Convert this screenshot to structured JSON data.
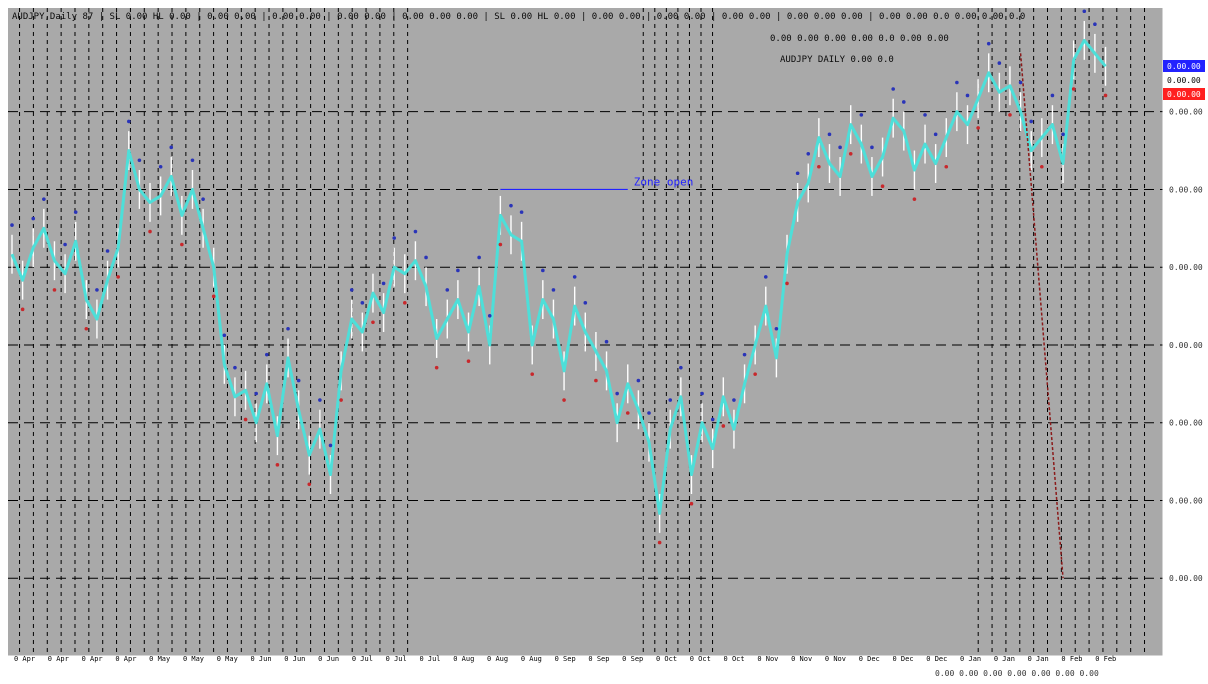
{
  "colors": {
    "background": "#a9a9a9",
    "frame": "#ffffff",
    "grid_dash": "#000000",
    "price_line": "#4ddfd9",
    "wick": "#ffffff",
    "red_marker": "#c8282c",
    "blue_marker": "#2a34b8",
    "trend_line": "#8b1a1a",
    "info_text": "#0a0a0a",
    "label_blue": "#2222ff",
    "label_white": "#ffffff",
    "label_red": "#ff2020"
  },
  "header": {
    "status_text": "AUDJPY,Daily 87 | SL 0.00 HL 0.00 | 0.00 0.00 | 0.00 0.00 | 0.00 0.00 | 0.00 0.00 0.00 | SL 0.00 HL 0.00 | 0.00 0.00 | 0.00 0.00 | 0.00 0.00 | 0.00 0.00 0.00 | 0.00 0.00 0.0 0.00 0.00 0.0"
  },
  "info_box": {
    "line1": "0.00 0.00 0.00 0.00 0.0 0.00 0.00",
    "line2": "AUDJPY DAILY 0.00 0.0"
  },
  "annotation": {
    "text": "Zone open"
  },
  "price_tags": [
    "0.00.00",
    "0.00.00",
    "0.00.00"
  ],
  "bottom_right_text": "0.00 0.00 0.00 0.00 0.00 0.00 0.00",
  "chart_data": {
    "type": "line",
    "title": "",
    "xlabel": "",
    "ylabel": "",
    "ylim": [
      0,
      100
    ],
    "y_ticks": [
      {
        "value": 84,
        "label": "0.00.00"
      },
      {
        "value": 72,
        "label": "0.00.00"
      },
      {
        "value": 60,
        "label": "0.00.00"
      },
      {
        "value": 48,
        "label": "0.00.00"
      },
      {
        "value": 36,
        "label": "0.00.00"
      },
      {
        "value": 24,
        "label": "0.00.00"
      },
      {
        "value": 12,
        "label": "0.00.00"
      }
    ],
    "x_tick_labels": [
      "0 Apr",
      "0 Apr",
      "0 Apr",
      "0 Apr",
      "0 May",
      "0 May",
      "0 May",
      "0 Jun",
      "0 Jun",
      "0 Jun",
      "0 Jul",
      "0 Jul",
      "0 Jul",
      "0 Aug",
      "0 Aug",
      "0 Aug",
      "0 Sep",
      "0 Sep",
      "0 Sep",
      "0 Oct",
      "0 Oct",
      "0 Oct",
      "0 Nov",
      "0 Nov",
      "0 Nov",
      "0 Dec",
      "0 Dec",
      "0 Dec",
      "0 Jan",
      "0 Jan",
      "0 Jan",
      "0 Feb",
      "0 Feb"
    ],
    "series": [
      {
        "values": [
          62,
          58,
          63,
          66,
          61,
          59,
          64,
          55,
          52,
          58,
          63,
          78,
          72,
          70,
          71,
          74,
          68,
          72,
          66,
          60,
          45,
          40,
          41,
          36,
          42,
          34,
          46,
          38,
          31,
          35,
          28,
          44,
          52,
          50,
          56,
          53,
          60,
          59,
          61,
          57,
          49,
          52,
          55,
          50,
          57,
          48,
          68,
          65,
          64,
          48,
          55,
          52,
          44,
          54,
          50,
          47,
          44,
          36,
          42,
          38,
          33,
          22,
          35,
          40,
          28,
          36,
          32,
          40,
          35,
          42,
          48,
          54,
          46,
          62,
          70,
          73,
          80,
          76,
          74,
          82,
          79,
          74,
          77,
          83,
          81,
          75,
          79,
          76,
          80,
          84,
          82,
          86,
          90,
          87,
          88,
          84,
          78,
          80,
          82,
          76,
          92,
          95,
          93,
          91
        ]
      }
    ],
    "annotations": [
      {
        "type": "hline",
        "y": 72,
        "label": "Zone open"
      },
      {
        "type": "trendline",
        "from": [
          95,
          93
        ],
        "to": [
          99,
          12
        ]
      }
    ],
    "grid": true
  }
}
